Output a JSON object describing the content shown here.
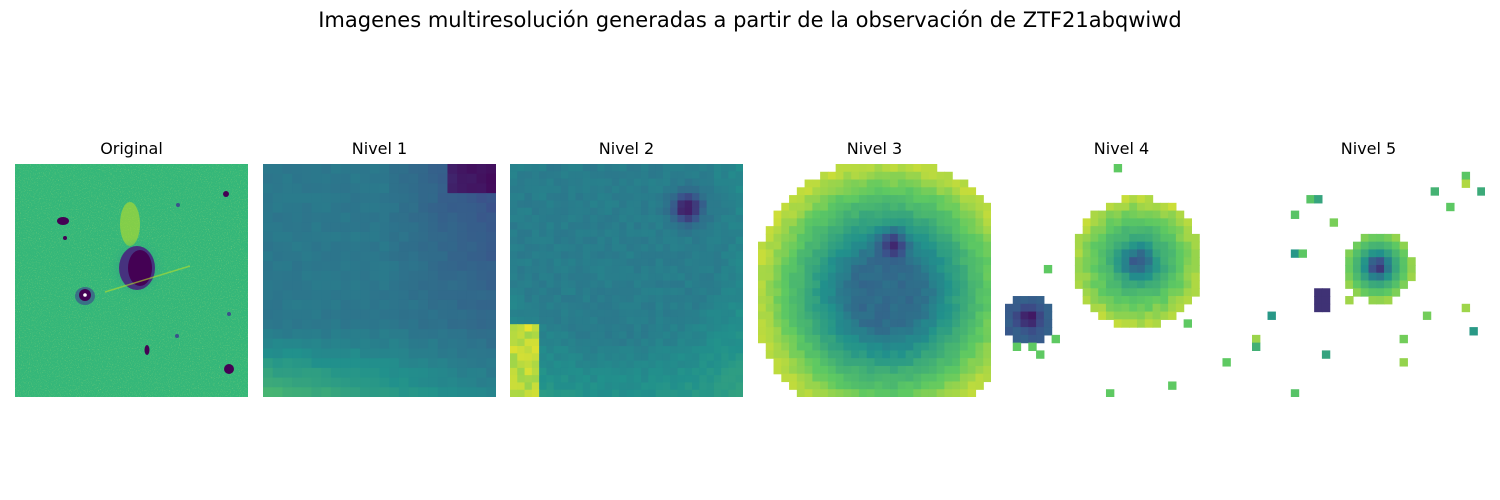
{
  "figure": {
    "title": "Imagenes multiresolución generadas a partir de la observación de ZTF21abqwiwd"
  },
  "panels": [
    {
      "title": "Original"
    },
    {
      "title": "Nivel 1"
    },
    {
      "title": "Nivel 2"
    },
    {
      "title": "Nivel 3"
    },
    {
      "title": "Nivel 4"
    },
    {
      "title": "Nivel 5"
    }
  ],
  "colormap": "viridis",
  "colors": {
    "background_teal": "#2fb47c",
    "dark_purple": "#3b1f5e",
    "yellow": "#dde318",
    "blue": "#3b6a8f"
  }
}
